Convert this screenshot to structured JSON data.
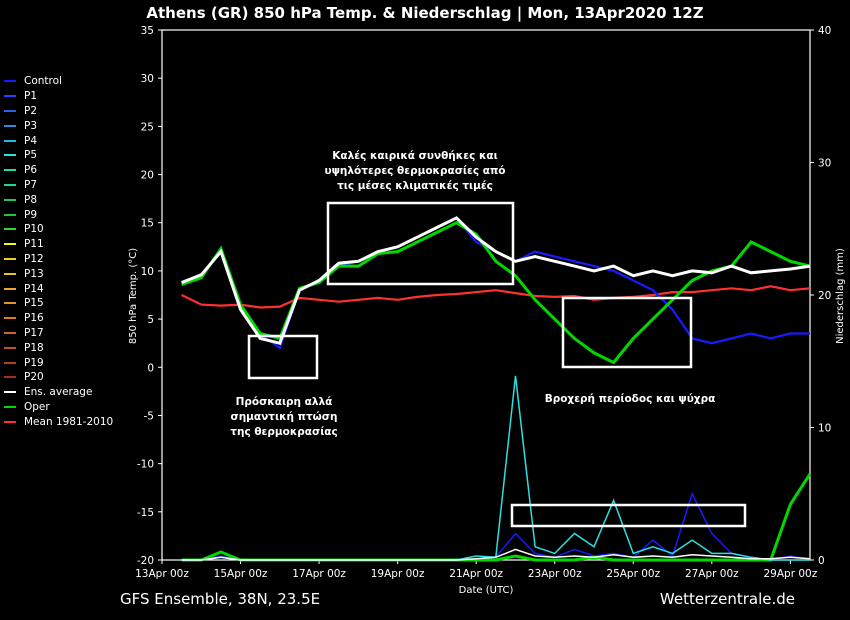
{
  "title": "Athens  (GR)  850 hPa Temp. & Niederschlag | Mon, 13Apr2020 12Z",
  "footer_left": "GFS Ensemble, 38N, 23.5E",
  "footer_right": "Wetterzentrale.de",
  "legend": [
    {
      "label": "Control",
      "color": "#1a1aff"
    },
    {
      "label": "P1",
      "color": "#2b3bff"
    },
    {
      "label": "P2",
      "color": "#2a63e8"
    },
    {
      "label": "P3",
      "color": "#2b8ee0"
    },
    {
      "label": "P4",
      "color": "#22b8e8"
    },
    {
      "label": "P5",
      "color": "#2ae0e0"
    },
    {
      "label": "P6",
      "color": "#22d8b0"
    },
    {
      "label": "P7",
      "color": "#1ed890"
    },
    {
      "label": "P8",
      "color": "#22c060"
    },
    {
      "label": "P9",
      "color": "#20c040"
    },
    {
      "label": "P10",
      "color": "#30d820"
    },
    {
      "label": "P11",
      "color": "#f8f800"
    },
    {
      "label": "P12",
      "color": "#f0d020"
    },
    {
      "label": "P13",
      "color": "#e8c030"
    },
    {
      "label": "P14",
      "color": "#e8a830"
    },
    {
      "label": "P15",
      "color": "#e89030"
    },
    {
      "label": "P16",
      "color": "#e07828"
    },
    {
      "label": "P17",
      "color": "#d86020"
    },
    {
      "label": "P18",
      "color": "#c05028"
    },
    {
      "label": "P19",
      "color": "#b04020"
    },
    {
      "label": "P20",
      "color": "#a03020"
    },
    {
      "label": "Ens. average",
      "color": "#ffffff"
    },
    {
      "label": "Oper",
      "color": "#00d800"
    },
    {
      "label": "Mean 1981-2010",
      "color": "#ff3030"
    }
  ],
  "annotations": [
    {
      "text": "Καλές καιρικά συνθήκες και\nυψηλότερες θερμοκρασίες από\nτις μέσες κλιματικές τιμές"
    },
    {
      "text": "Πρόσκαιρη αλλά\nσημαντική πτώση\nτης θερμοκρασίας"
    },
    {
      "text": "Βροχερή περίοδος και ψύχρα"
    }
  ],
  "chart_data": {
    "type": "line",
    "xlabel": "Date (UTC)",
    "ylabel": "850 hPa Temp. (°C)",
    "y2label": "Niederschlag (mm)",
    "ylim": [
      -20,
      35
    ],
    "y2lim": [
      0,
      40
    ],
    "yticks": [
      35,
      30,
      25,
      20,
      15,
      10,
      5,
      0,
      -5,
      -10,
      -15,
      -20
    ],
    "y2ticks": [
      40,
      30,
      20,
      10,
      0
    ],
    "xlim": [
      "13Apr 00z",
      "29Apr 12z"
    ],
    "xticks": [
      "13Apr 00z",
      "15Apr 00z",
      "17Apr 00z",
      "19Apr 00z",
      "21Apr 00z",
      "23Apr 00z",
      "25Apr 00z",
      "27Apr 00z",
      "29Apr 00z"
    ],
    "x_time_hours_from_13Apr00z": [
      12,
      24,
      36,
      48,
      60,
      72,
      84,
      96,
      108,
      120,
      132,
      144,
      156,
      168,
      180,
      192,
      204,
      216,
      228,
      240,
      252,
      264,
      276,
      288,
      300,
      312,
      324,
      336,
      348,
      360,
      372,
      384,
      396
    ],
    "series": [
      {
        "name": "Ens. average",
        "values": [
          8.8,
          9.6,
          12.0,
          6.0,
          3.0,
          2.5,
          8.0,
          9.0,
          10.8,
          11.0,
          12.0,
          12.5,
          13.5,
          14.5,
          15.5,
          13.5,
          12.0,
          11.0,
          11.5,
          11.0,
          10.5,
          10.0,
          10.5,
          9.5,
          10.0,
          9.5,
          10.0,
          9.8,
          10.5,
          9.8,
          10.0,
          10.2,
          10.5
        ]
      },
      {
        "name": "Oper",
        "values": [
          8.6,
          9.3,
          12.3,
          6.5,
          3.5,
          3.0,
          8.2,
          8.8,
          10.5,
          10.5,
          11.8,
          12.0,
          13.0,
          14.0,
          15.0,
          13.8,
          11.0,
          9.5,
          7.0,
          5.0,
          3.0,
          1.5,
          0.5,
          3.0,
          5.0,
          7.0,
          9.0,
          10.0,
          10.5,
          13.0,
          12.0,
          11.0,
          10.5
        ]
      },
      {
        "name": "Control",
        "values": [
          8.5,
          9.5,
          12.0,
          6.0,
          3.5,
          2.0,
          8.0,
          9.0,
          10.5,
          11.0,
          12.0,
          12.5,
          13.5,
          14.5,
          15.5,
          13.0,
          12.0,
          11.0,
          12.0,
          11.5,
          11.0,
          10.5,
          10.0,
          9.0,
          8.0,
          6.0,
          3.0,
          2.5,
          3.0,
          3.5,
          3.0,
          3.5,
          3.5
        ]
      },
      {
        "name": "Mean 1981-2010",
        "values": [
          7.5,
          6.5,
          6.4,
          6.5,
          6.2,
          6.3,
          7.2,
          7.0,
          6.8,
          7.0,
          7.2,
          7.0,
          7.3,
          7.5,
          7.6,
          7.8,
          8.0,
          7.7,
          7.4,
          7.3,
          7.4,
          7.0,
          7.2,
          7.3,
          7.5,
          7.8,
          7.8,
          8.0,
          8.2,
          8.0,
          8.4,
          8.0,
          8.2
        ]
      }
    ],
    "precip_series": [
      {
        "name": "Control",
        "values": [
          0,
          0,
          0.3,
          0,
          0,
          0,
          0,
          0,
          0,
          0,
          0,
          0,
          0,
          0,
          0,
          0,
          0.2,
          2.0,
          0.5,
          0.2,
          0.8,
          0.3,
          0.5,
          0.2,
          1.5,
          0.3,
          5.0,
          2.0,
          0.5,
          0.2,
          0,
          0.3,
          0
        ]
      },
      {
        "name": "Oper",
        "values": [
          0,
          0,
          0.6,
          0,
          0,
          0,
          0,
          0,
          0,
          0,
          0,
          0,
          0,
          0,
          0,
          0,
          0,
          0.3,
          0,
          0,
          0,
          0.2,
          0,
          0,
          0,
          0,
          0,
          0,
          0,
          0,
          0,
          4.2,
          6.5
        ]
      },
      {
        "name": "P5",
        "values": [
          0,
          0,
          0.2,
          0,
          0,
          0,
          0,
          0,
          0,
          0,
          0,
          0,
          0,
          0,
          0,
          0.3,
          0.2,
          13.9,
          1.0,
          0.5,
          2.0,
          1.0,
          4.5,
          0.5,
          1.0,
          0.5,
          1.5,
          0.5,
          0.5,
          0.2,
          0,
          0,
          0
        ]
      },
      {
        "name": "Ens. average",
        "values": [
          0,
          0,
          0.2,
          0,
          0,
          0,
          0,
          0,
          0,
          0,
          0,
          0,
          0,
          0,
          0,
          0.1,
          0.2,
          0.8,
          0.3,
          0.2,
          0.3,
          0.2,
          0.4,
          0.2,
          0.3,
          0.2,
          0.4,
          0.3,
          0.2,
          0.1,
          0.1,
          0.2,
          0.1
        ]
      }
    ]
  }
}
